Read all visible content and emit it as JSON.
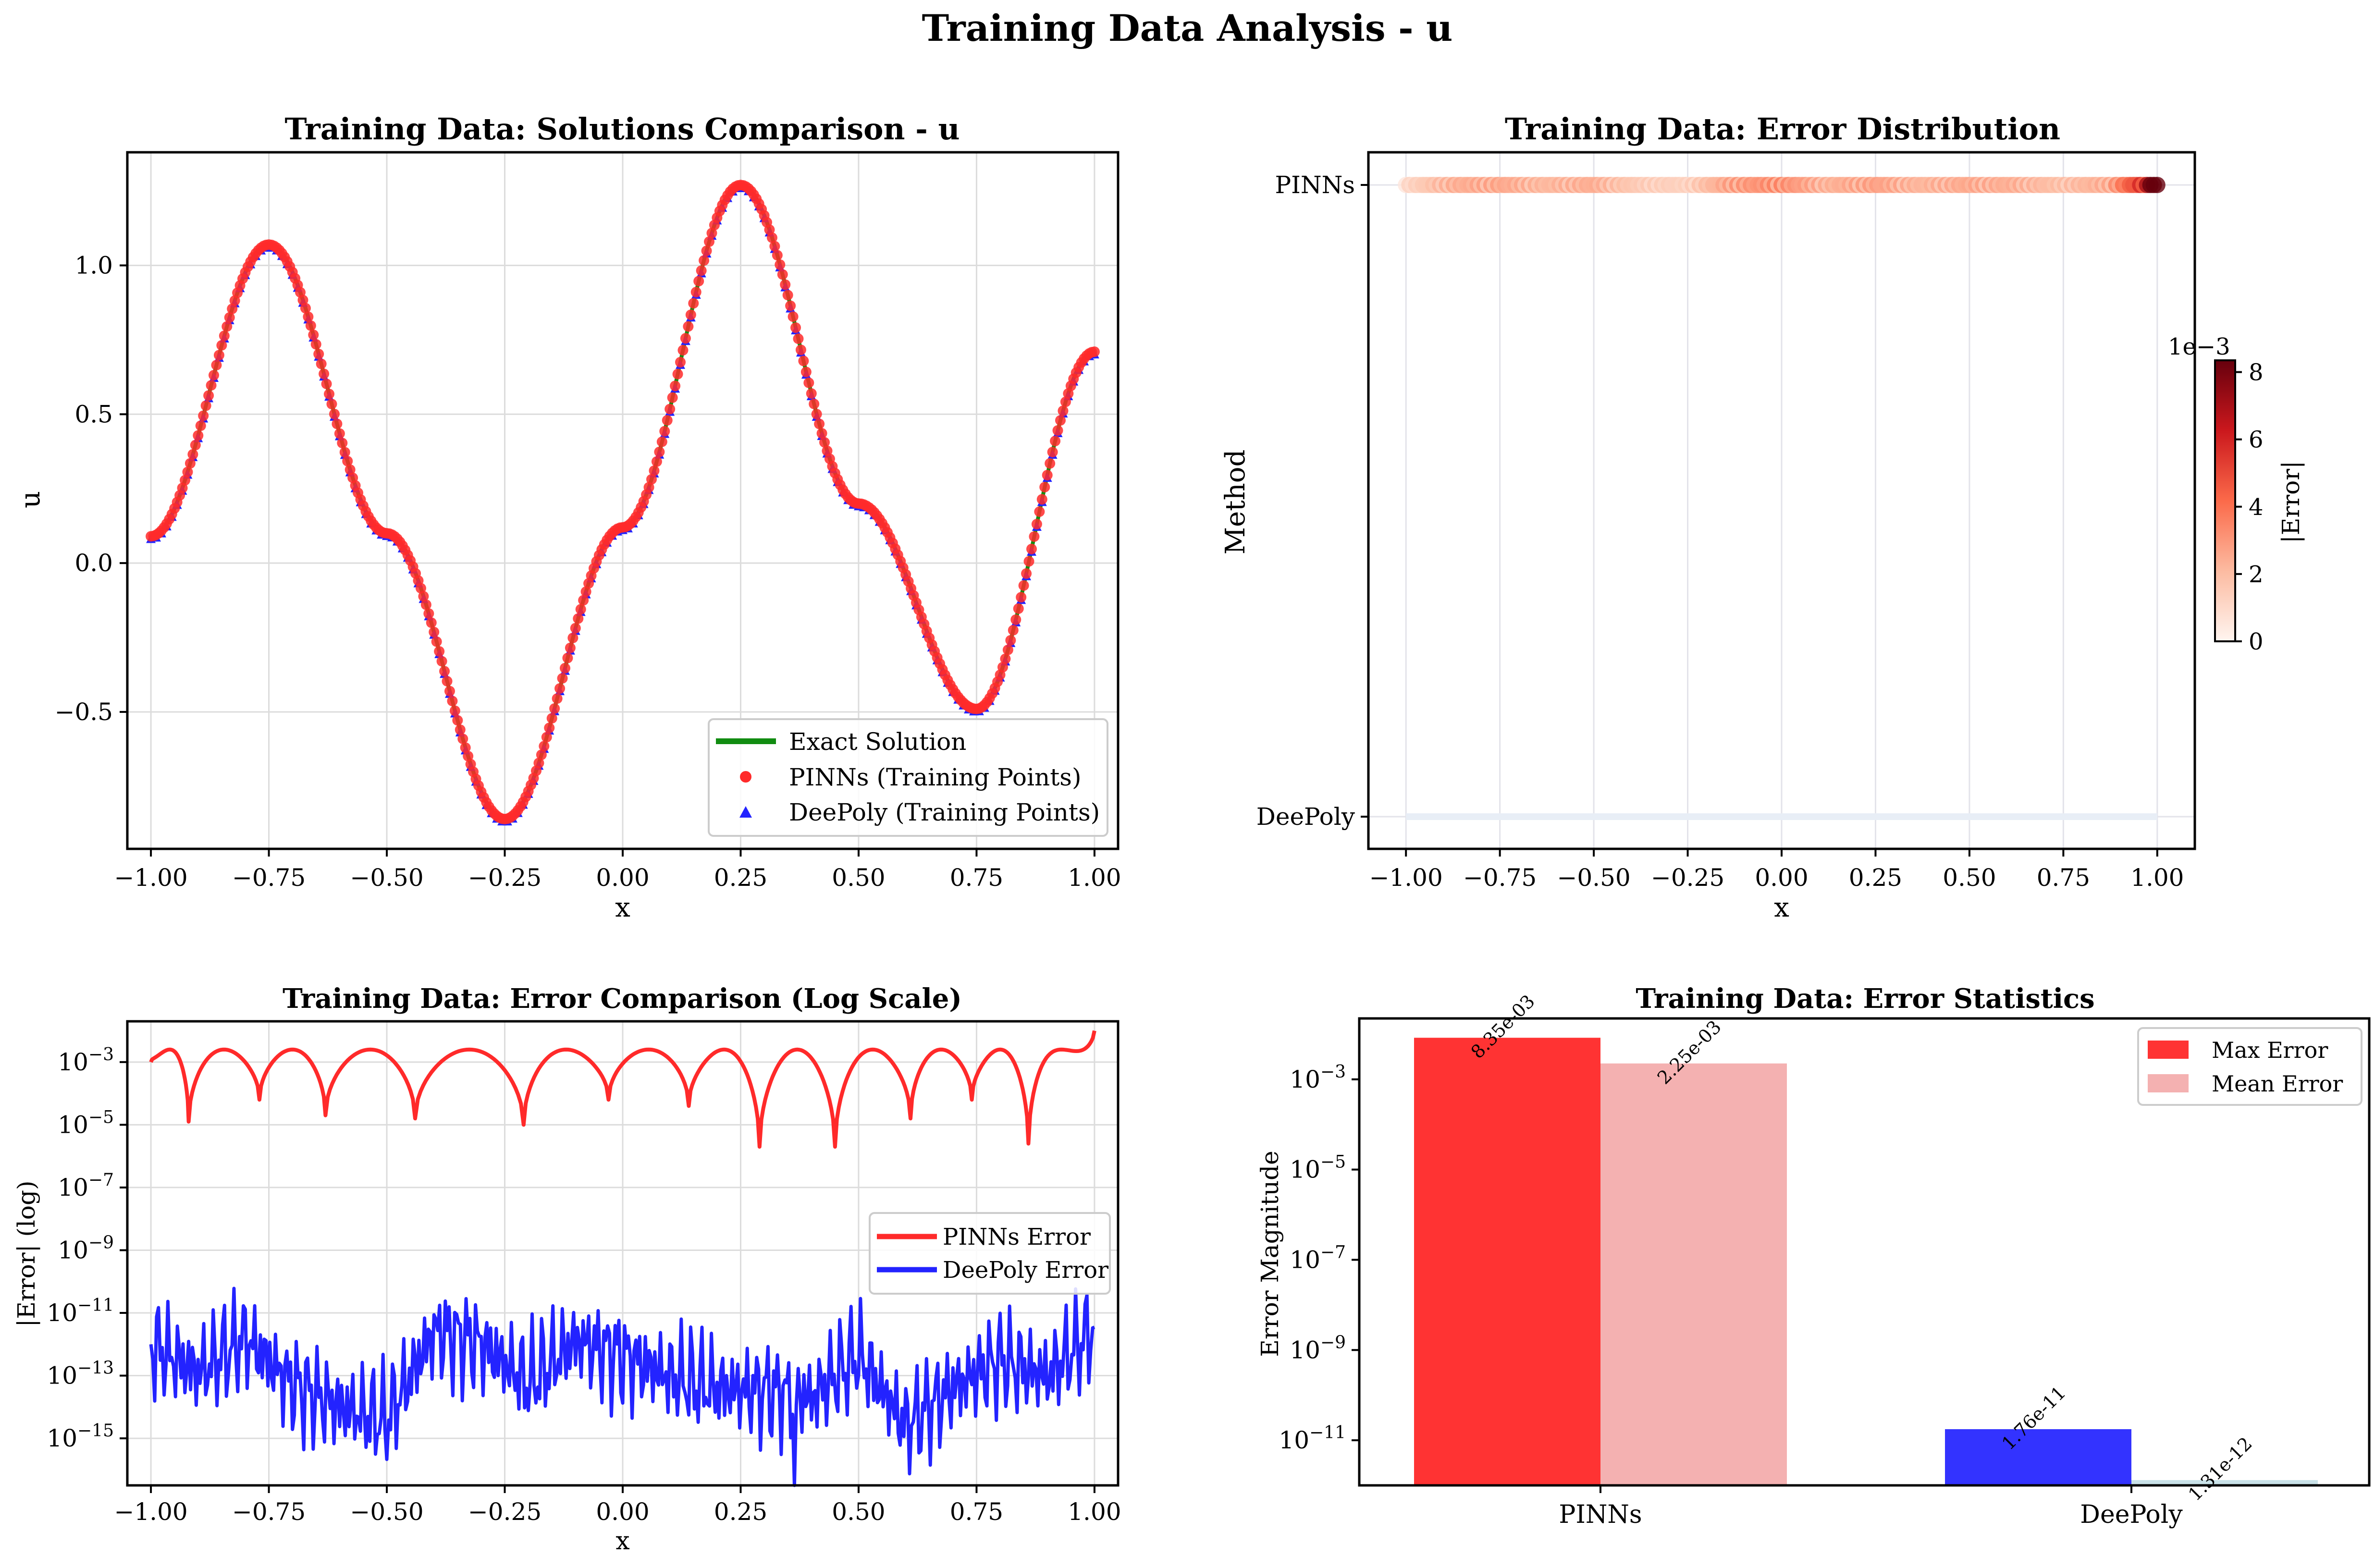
{
  "figure": {
    "title": "Training Data Analysis - u"
  },
  "colors": {
    "pinns": "#ff2a2a",
    "deepoly": "#2323ff",
    "exact": "#118c11",
    "mean_pinns": "#f4b1b1",
    "mean_deepoly": "#c9e2e8",
    "grid": "#dcdcdc"
  },
  "chart_data": [
    {
      "type": "line",
      "title": "Training Data: Solutions Comparison - u",
      "xlabel": "x",
      "ylabel": "u",
      "xlim": [
        -1.05,
        1.05
      ],
      "ylim": [
        -0.96,
        1.38
      ],
      "xticks": [
        "−1.00",
        "−0.75",
        "−0.50",
        "−0.25",
        "0.00",
        "0.25",
        "0.50",
        "0.75",
        "1.00"
      ],
      "yticks": [
        "−0.5",
        "0.0",
        "0.5",
        "1.0"
      ],
      "grid": true,
      "legend": {
        "placement": "lower-right",
        "entries": [
          "Exact Solution",
          "PINNs (Training Points)",
          "DeePoly (Training Points)"
        ]
      },
      "series": [
        {
          "name": "Exact Solution",
          "marker": "line",
          "x": [
            -1.0,
            -0.75,
            -0.5,
            -0.25,
            0.0,
            0.25,
            0.5,
            0.75,
            1.0
          ],
          "y": [
            0.09,
            1.07,
            0.1,
            -0.86,
            0.12,
            1.27,
            0.2,
            -0.49,
            0.71
          ]
        },
        {
          "name": "PINNs (Training Points)",
          "marker": "circle",
          "x": [
            -1.0,
            -0.75,
            -0.5,
            -0.25,
            0.0,
            0.25,
            0.5,
            0.75,
            1.0
          ],
          "y": [
            0.09,
            1.07,
            0.1,
            -0.86,
            0.12,
            1.27,
            0.2,
            -0.49,
            0.71
          ]
        },
        {
          "name": "DeePoly (Training Points)",
          "marker": "triangle",
          "x": [
            -1.0,
            -0.75,
            -0.5,
            -0.25,
            0.0,
            0.25,
            0.5,
            0.75,
            1.0
          ],
          "y": [
            0.09,
            1.07,
            0.1,
            -0.86,
            0.12,
            1.27,
            0.2,
            -0.49,
            0.71
          ]
        }
      ]
    },
    {
      "type": "scatter",
      "title": "Training Data: Error Distribution",
      "xlabel": "x",
      "ylabel": "Method",
      "xlim": [
        -1.1,
        1.1
      ],
      "xticks": [
        "−1.00",
        "−0.75",
        "−0.50",
        "−0.25",
        "0.00",
        "0.25",
        "0.50",
        "0.75",
        "1.00"
      ],
      "categories": [
        "PINNs",
        "DeePoly"
      ],
      "grid": true,
      "colorbar": {
        "label": "|Error|",
        "offset": "1e−3",
        "ticks": [
          "0",
          "2",
          "4",
          "6",
          "8"
        ],
        "range": [
          0,
          8.35
        ]
      },
      "series": [
        {
          "name": "PINNs",
          "x": [
            -1.0,
            -0.875,
            -0.75,
            -0.625,
            -0.5,
            -0.375,
            -0.25,
            -0.125,
            0.0,
            0.125,
            0.25,
            0.375,
            0.5,
            0.625,
            0.75,
            0.875,
            1.0
          ],
          "error_e3": [
            1.2,
            2.8,
            3.1,
            2.5,
            2.9,
            1.8,
            1.5,
            3.4,
            3.9,
            2.7,
            3.3,
            2.6,
            3.0,
            2.8,
            2.2,
            2.9,
            8.35
          ]
        },
        {
          "name": "DeePoly",
          "x": [
            -1.0,
            1.0
          ],
          "error_e3": [
            0.0,
            0.0
          ]
        }
      ]
    },
    {
      "type": "line",
      "title": "Training Data: Error Comparison (Log Scale)",
      "xlabel": "x",
      "ylabel": "|Error| (log)",
      "yscale": "log",
      "ylim_exp": [
        -16.5,
        -1.7
      ],
      "xlim": [
        -1.05,
        1.05
      ],
      "xticks": [
        "−1.00",
        "−0.75",
        "−0.50",
        "−0.25",
        "0.00",
        "0.25",
        "0.50",
        "0.75",
        "1.00"
      ],
      "yticks": [
        {
          "base": "10",
          "exp": "−3"
        },
        {
          "base": "10",
          "exp": "−5"
        },
        {
          "base": "10",
          "exp": "−7"
        },
        {
          "base": "10",
          "exp": "−9"
        },
        {
          "base": "10",
          "exp": "−11"
        },
        {
          "base": "10",
          "exp": "−13"
        },
        {
          "base": "10",
          "exp": "−15"
        }
      ],
      "grid": true,
      "legend": {
        "placement": "center-right",
        "entries": [
          "PINNs Error",
          "DeePoly Error"
        ]
      },
      "series": [
        {
          "name": "PINNs Error",
          "dips_x": [
            -1.0,
            -0.92,
            -0.77,
            -0.63,
            -0.44,
            -0.21,
            -0.03,
            0.14,
            0.29,
            0.45,
            0.61,
            0.74,
            0.86,
            1.0
          ],
          "dips_log": [
            -3.0,
            -4.9,
            -4.2,
            -4.7,
            -4.8,
            -5.0,
            -4.2,
            -4.4,
            -5.7,
            -5.7,
            -4.8,
            -4.2,
            -5.6,
            -2.0
          ],
          "peak_log": -2.6
        },
        {
          "name": "DeePoly Error",
          "x": [
            -1.0,
            -0.9,
            -0.8,
            -0.7,
            -0.6,
            -0.5,
            -0.4,
            -0.3,
            -0.2,
            -0.1,
            0.0,
            0.1,
            0.2,
            0.3,
            0.4,
            0.5,
            0.6,
            0.7,
            0.8,
            0.9,
            1.0
          ],
          "y_log": [
            -12.0,
            -12.9,
            -11.8,
            -13.3,
            -14.0,
            -14.4,
            -11.6,
            -12.0,
            -13.2,
            -11.9,
            -12.4,
            -13.0,
            -13.4,
            -13.5,
            -13.7,
            -12.3,
            -14.6,
            -13.4,
            -12.5,
            -13.0,
            -11.5
          ]
        }
      ]
    },
    {
      "type": "bar",
      "title": "Training Data: Error Statistics",
      "ylabel": "Error Magnitude",
      "yscale": "log",
      "ylim_exp": [
        -12.0,
        -1.65
      ],
      "categories": [
        "PINNs",
        "DeePoly"
      ],
      "yticks": [
        {
          "base": "10",
          "exp": "−3"
        },
        {
          "base": "10",
          "exp": "−5"
        },
        {
          "base": "10",
          "exp": "−7"
        },
        {
          "base": "10",
          "exp": "−9"
        },
        {
          "base": "10",
          "exp": "−11"
        }
      ],
      "legend": {
        "placement": "top-right",
        "entries": [
          "Max Error",
          "Mean Error"
        ]
      },
      "series": [
        {
          "name": "Max Error",
          "values": [
            0.00835,
            1.76e-11
          ],
          "labels": [
            "8.35e-03",
            "1.76e-11"
          ]
        },
        {
          "name": "Mean Error",
          "values": [
            0.00225,
            1.31e-12
          ],
          "labels": [
            "2.25e-03",
            "1.31e-12"
          ]
        }
      ]
    }
  ]
}
